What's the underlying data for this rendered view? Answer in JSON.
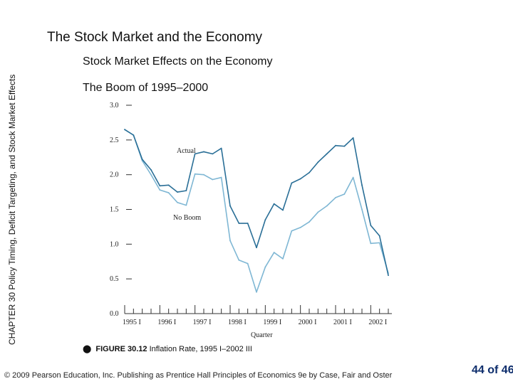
{
  "slide": {
    "title": "The Stock Market and the Economy",
    "section": "Stock Market Effects on the Economy",
    "side_label": "CHAPTER 30 Policy Timing, Deficit Targeting, and Stock Market Effects",
    "caption_icon": "globe-icon",
    "caption_fig": "FIGURE 30.12",
    "caption_text": "Inflation Rate, 1995 I–2002 III",
    "footer": "© 2009 Pearson Education, Inc. Publishing as Prentice Hall Principles of Economics 9e by Case, Fair and Oster",
    "page": "44 of 46"
  },
  "chart_data": {
    "type": "line",
    "title": "The Boom of 1995–2000",
    "xlabel": "Quarter",
    "ylabel": "",
    "ylim": [
      0,
      3
    ],
    "yticks": [
      "0.0",
      "0.5",
      "1.0",
      "1.5",
      "2.0",
      "2.5",
      "3.0"
    ],
    "xtick_labels": [
      "1995 I",
      "1996 I",
      "1997 I",
      "1998 I",
      "1999 I",
      "2000 I",
      "2001 I",
      "2002 I"
    ],
    "grid": false,
    "colors": {
      "actual": "#2a6f97",
      "noboom": "#7fb7d4"
    },
    "series": [
      {
        "name": "Actual",
        "values": [
          2.65,
          2.57,
          2.22,
          2.07,
          1.84,
          1.85,
          1.75,
          1.77,
          2.3,
          2.33,
          2.3,
          2.38,
          1.55,
          1.3,
          1.3,
          0.95,
          1.35,
          1.58,
          1.49,
          1.88,
          1.94,
          2.03,
          2.18,
          2.3,
          2.42,
          2.41,
          2.53,
          1.85,
          1.27,
          1.12,
          0.55
        ]
      },
      {
        "name": "No Boom",
        "values": [
          2.65,
          2.57,
          2.2,
          2.0,
          1.78,
          1.74,
          1.6,
          1.56,
          2.01,
          2.0,
          1.93,
          1.96,
          1.05,
          0.77,
          0.72,
          0.31,
          0.67,
          0.88,
          0.79,
          1.19,
          1.24,
          1.32,
          1.46,
          1.55,
          1.67,
          1.72,
          1.96,
          1.5,
          1.01,
          1.02,
          0.58
        ]
      }
    ]
  }
}
